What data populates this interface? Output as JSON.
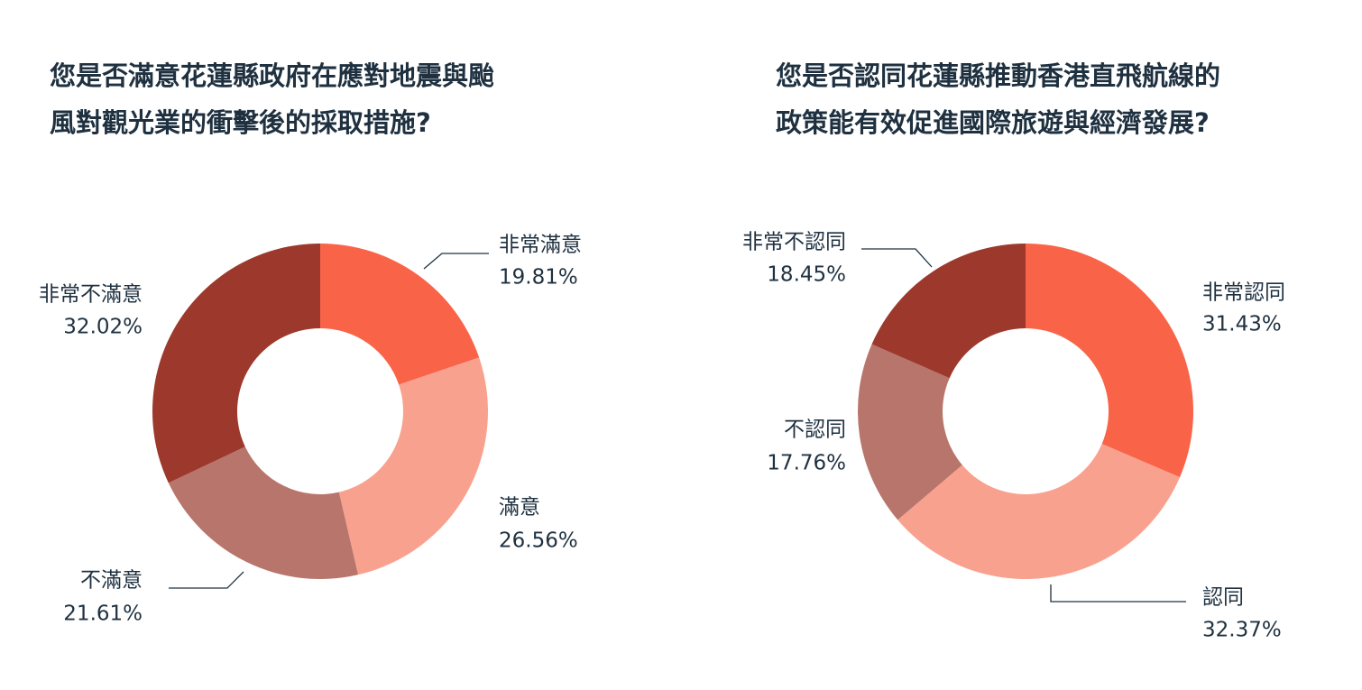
{
  "chart_data": [
    {
      "type": "pie",
      "title": "您是否滿意花蓮縣政府在應對地震與颱風對觀光業的衝擊後的採取措施?",
      "title_lines": [
        "您是否滿意花蓮縣政府在應對地震與颱",
        "風對觀光業的衝擊後的採取措施?"
      ],
      "donut": true,
      "slices": [
        {
          "label": "非常滿意",
          "value": 19.81,
          "value_text": "19.81%",
          "color": "#f96449"
        },
        {
          "label": "滿意",
          "value": 26.56,
          "value_text": "26.56%",
          "color": "#f9a18f"
        },
        {
          "label": "不滿意",
          "value": 21.61,
          "value_text": "21.61%",
          "color": "#b8756b"
        },
        {
          "label": "非常不滿意",
          "value": 32.02,
          "value_text": "32.02%",
          "color": "#9c392c"
        }
      ]
    },
    {
      "type": "pie",
      "title": "您是否認同花蓮縣推動香港直飛航線的政策能有效促進國際旅遊與經濟發展?",
      "title_lines": [
        "您是否認同花蓮縣推動香港直飛航線的",
        "政策能有效促進國際旅遊與經濟發展?"
      ],
      "donut": true,
      "slices": [
        {
          "label": "非常認同",
          "value": 31.43,
          "value_text": "31.43%",
          "color": "#f96449"
        },
        {
          "label": "認同",
          "value": 32.37,
          "value_text": "32.37%",
          "color": "#f9a18f"
        },
        {
          "label": "不認同",
          "value": 17.76,
          "value_text": "17.76%",
          "color": "#b8756b"
        },
        {
          "label": "非常不認同",
          "value": 18.45,
          "value_text": "18.45%",
          "color": "#9c392c"
        }
      ]
    }
  ]
}
